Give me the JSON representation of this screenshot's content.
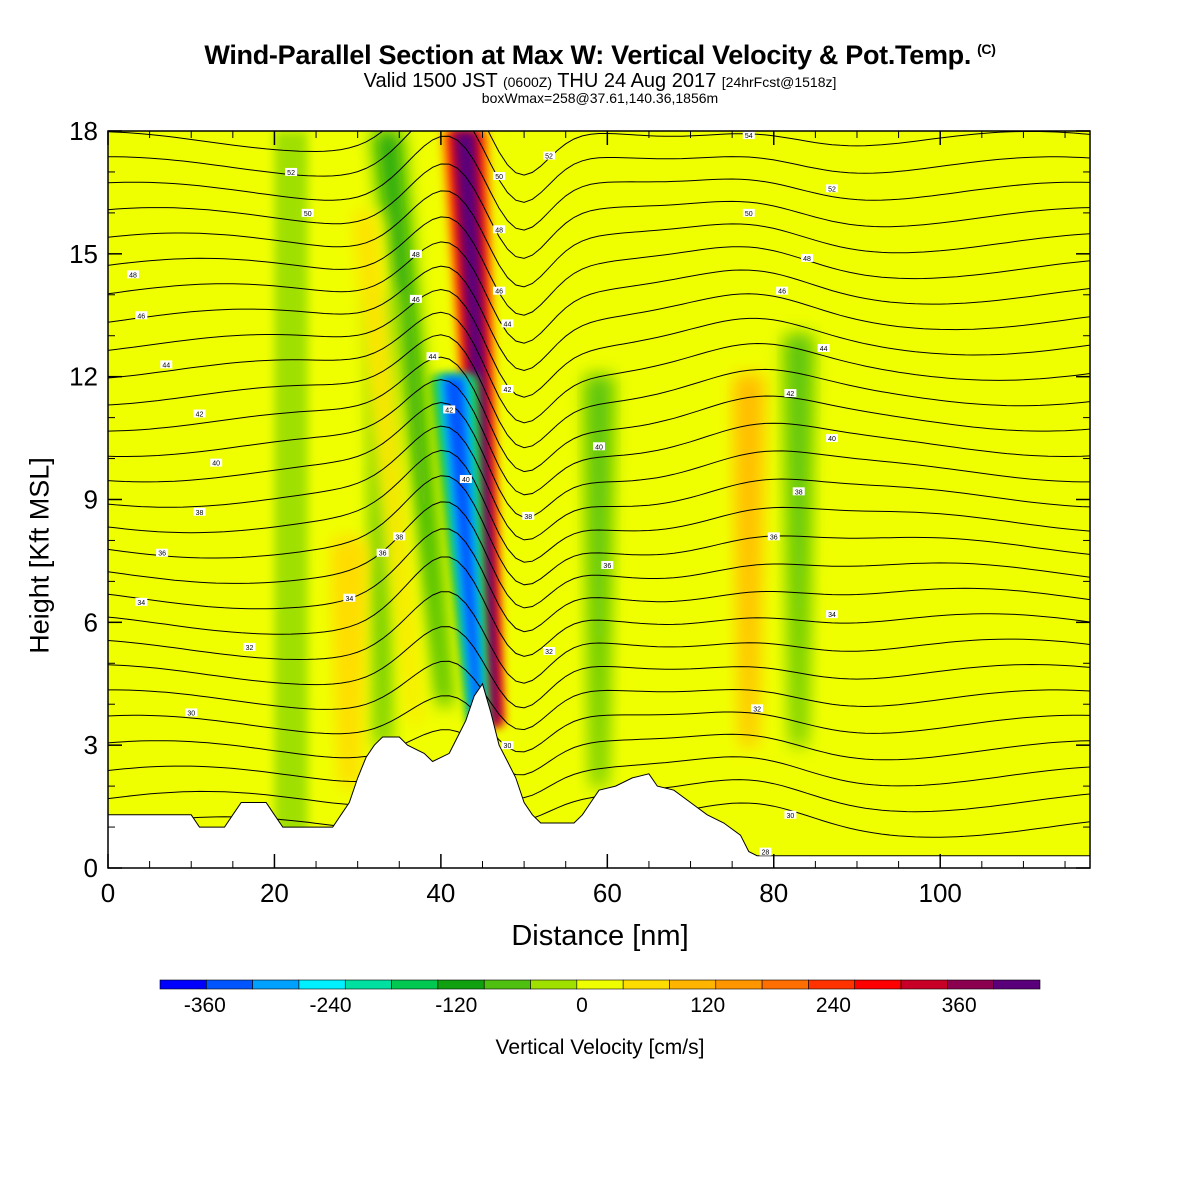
{
  "title": "Wind-Parallel Section at Max W: Vertical Velocity & Pot.Temp.",
  "copyright": "(C)",
  "subtitle_main": "Valid 1500 JST",
  "subtitle_z": "(0600Z)",
  "subtitle_date": "THU 24 Aug 2017",
  "subtitle_fcst": "[24hrFcst@1518z]",
  "subsubtitle": "boxWmax=258@37.61,140.36,1856m",
  "chart_data": {
    "type": "heatmap",
    "title": "Wind-Parallel Section at Max W: Vertical Velocity & Pot.Temp.",
    "xlabel": "Distance [nm]",
    "ylabel": "Height [Kft MSL]",
    "xlim": [
      0,
      118
    ],
    "ylim": [
      0,
      18
    ],
    "x_ticks": [
      "0",
      "20",
      "40",
      "60",
      "80",
      "100"
    ],
    "x_tick_values": [
      0,
      20,
      40,
      60,
      80,
      100
    ],
    "y_ticks": [
      "0",
      "3",
      "6",
      "9",
      "12",
      "15",
      "18"
    ],
    "y_tick_values": [
      0,
      3,
      6,
      9,
      12,
      15,
      18
    ],
    "colorbar": {
      "label": "Vertical Velocity [cm/s]",
      "tick_labels": [
        "-360",
        "-240",
        "-120",
        "0",
        "120",
        "240",
        "360"
      ],
      "tick_values": [
        -360,
        -240,
        -120,
        0,
        120,
        240,
        360
      ],
      "min": -420,
      "max": 420,
      "colors": [
        "#0000ff",
        "#0055ff",
        "#00a0ff",
        "#00f0ff",
        "#00e0a0",
        "#00c850",
        "#10a010",
        "#50c010",
        "#a0e000",
        "#f0ff00",
        "#ffdc00",
        "#ffb400",
        "#ff9600",
        "#ff6e00",
        "#ff3200",
        "#ff0000",
        "#c80028",
        "#8c0050",
        "#5a007a"
      ]
    },
    "terrain_profile_kft": [
      [
        0,
        1.3
      ],
      [
        10,
        1.3
      ],
      [
        11,
        1.0
      ],
      [
        14,
        1.0
      ],
      [
        15,
        1.3
      ],
      [
        16,
        1.6
      ],
      [
        19,
        1.6
      ],
      [
        20,
        1.3
      ],
      [
        21,
        1.0
      ],
      [
        27,
        1.0
      ],
      [
        28,
        1.3
      ],
      [
        29,
        1.6
      ],
      [
        30,
        2.2
      ],
      [
        31,
        2.7
      ],
      [
        32,
        3.0
      ],
      [
        33,
        3.2
      ],
      [
        35,
        3.2
      ],
      [
        36,
        3.0
      ],
      [
        38,
        2.8
      ],
      [
        39,
        2.6
      ],
      [
        41,
        2.8
      ],
      [
        42,
        3.2
      ],
      [
        43,
        3.6
      ],
      [
        44,
        4.2
      ],
      [
        45,
        4.5
      ],
      [
        46,
        3.8
      ],
      [
        47,
        3.0
      ],
      [
        48,
        2.6
      ],
      [
        49,
        2.2
      ],
      [
        50,
        1.6
      ],
      [
        51,
        1.3
      ],
      [
        52,
        1.1
      ],
      [
        56,
        1.1
      ],
      [
        57,
        1.3
      ],
      [
        58,
        1.6
      ],
      [
        59,
        1.9
      ],
      [
        61,
        2.0
      ],
      [
        63,
        2.2
      ],
      [
        65,
        2.3
      ],
      [
        66,
        2.0
      ],
      [
        68,
        1.9
      ],
      [
        70,
        1.6
      ],
      [
        72,
        1.3
      ],
      [
        74,
        1.1
      ],
      [
        76,
        0.8
      ],
      [
        77,
        0.4
      ],
      [
        78,
        0.3
      ],
      [
        118,
        0.3
      ]
    ],
    "vertical_velocity_features": [
      {
        "x": 46.5,
        "z_bottom": 3.5,
        "z_top": 18,
        "w": 380,
        "tilt_nm_per_kft": -0.25
      },
      {
        "x": 44.5,
        "z_bottom": 3.5,
        "z_top": 12,
        "w": -360,
        "tilt_nm_per_kft": -0.35
      },
      {
        "x": 40.5,
        "z_bottom": 4,
        "z_top": 18,
        "w": -120,
        "tilt_nm_per_kft": -0.5
      },
      {
        "x": 33,
        "z_bottom": 3,
        "z_top": 14,
        "w": -100,
        "tilt_nm_per_kft": 0
      },
      {
        "x": 37,
        "z_bottom": 3.5,
        "z_top": 16,
        "w": 40,
        "tilt_nm_per_kft": -0.5
      },
      {
        "x": 29,
        "z_bottom": 2,
        "z_top": 8,
        "w": 60,
        "tilt_nm_per_kft": 0
      },
      {
        "x": 77,
        "z_bottom": 3,
        "z_top": 12,
        "w": 90,
        "tilt_nm_per_kft": 0
      },
      {
        "x": 83,
        "z_bottom": 3,
        "z_top": 13,
        "w": -90,
        "tilt_nm_per_kft": 0
      },
      {
        "x": 59,
        "z_bottom": 2,
        "z_top": 12,
        "w": -70,
        "tilt_nm_per_kft": 0
      }
    ],
    "theta_contour_labels": [
      {
        "x": 3,
        "z": 14.5,
        "text": "48"
      },
      {
        "x": 4,
        "z": 13.5,
        "text": "46"
      },
      {
        "x": 7,
        "z": 12.3,
        "text": "44"
      },
      {
        "x": 11,
        "z": 11.1,
        "text": "42"
      },
      {
        "x": 13,
        "z": 9.9,
        "text": "40"
      },
      {
        "x": 11,
        "z": 8.7,
        "text": "38"
      },
      {
        "x": 6.5,
        "z": 7.7,
        "text": "36"
      },
      {
        "x": 4,
        "z": 6.5,
        "text": "34"
      },
      {
        "x": 17,
        "z": 5.4,
        "text": "32"
      },
      {
        "x": 10,
        "z": 3.8,
        "text": "30"
      },
      {
        "x": 22,
        "z": 17.0,
        "text": "52"
      },
      {
        "x": 24,
        "z": 16.0,
        "text": "50"
      },
      {
        "x": 37,
        "z": 15.0,
        "text": "48"
      },
      {
        "x": 37,
        "z": 13.9,
        "text": "46"
      },
      {
        "x": 39,
        "z": 12.5,
        "text": "44"
      },
      {
        "x": 41,
        "z": 11.2,
        "text": "42"
      },
      {
        "x": 43,
        "z": 9.5,
        "text": "40"
      },
      {
        "x": 35,
        "z": 8.1,
        "text": "38"
      },
      {
        "x": 33,
        "z": 7.7,
        "text": "36"
      },
      {
        "x": 29,
        "z": 6.6,
        "text": "34"
      },
      {
        "x": 47,
        "z": 16.9,
        "text": "50"
      },
      {
        "x": 47,
        "z": 15.6,
        "text": "48"
      },
      {
        "x": 47,
        "z": 14.1,
        "text": "46"
      },
      {
        "x": 48,
        "z": 13.3,
        "text": "44"
      },
      {
        "x": 48,
        "z": 11.7,
        "text": "42"
      },
      {
        "x": 50.5,
        "z": 8.6,
        "text": "38"
      },
      {
        "x": 53,
        "z": 17.4,
        "text": "52"
      },
      {
        "x": 59,
        "z": 10.3,
        "text": "40"
      },
      {
        "x": 60,
        "z": 7.4,
        "text": "36"
      },
      {
        "x": 53,
        "z": 5.3,
        "text": "32"
      },
      {
        "x": 48,
        "z": 3.0,
        "text": "30"
      },
      {
        "x": 77,
        "z": 17.9,
        "text": "54"
      },
      {
        "x": 77,
        "z": 16.0,
        "text": "50"
      },
      {
        "x": 87,
        "z": 16.6,
        "text": "52"
      },
      {
        "x": 84,
        "z": 14.9,
        "text": "48"
      },
      {
        "x": 81,
        "z": 14.1,
        "text": "46"
      },
      {
        "x": 86,
        "z": 12.7,
        "text": "44"
      },
      {
        "x": 82,
        "z": 11.6,
        "text": "42"
      },
      {
        "x": 87,
        "z": 10.5,
        "text": "40"
      },
      {
        "x": 83,
        "z": 9.2,
        "text": "38"
      },
      {
        "x": 80,
        "z": 8.1,
        "text": "36"
      },
      {
        "x": 87,
        "z": 6.2,
        "text": "34"
      },
      {
        "x": 78,
        "z": 3.9,
        "text": "32"
      },
      {
        "x": 82,
        "z": 1.3,
        "text": "30"
      },
      {
        "x": 79,
        "z": 0.4,
        "text": "28"
      }
    ]
  }
}
